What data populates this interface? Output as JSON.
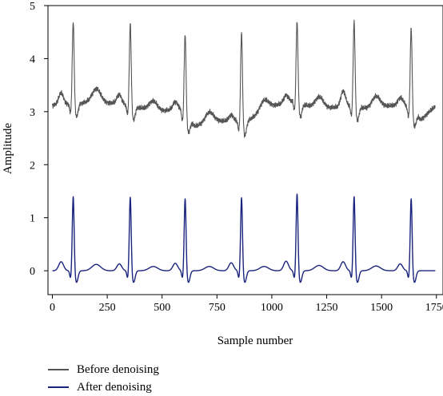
{
  "chart_data": {
    "type": "line",
    "title": "",
    "xlabel": "Sample number",
    "ylabel": "Amplitude",
    "xlim": [
      -20,
      1780
    ],
    "ylim": [
      -0.45,
      5
    ],
    "xticks": [
      0,
      250,
      500,
      750,
      1000,
      1250,
      1500,
      1750
    ],
    "xtick_labels": [
      "0",
      "250",
      "500",
      "750",
      "1000",
      "1250",
      "1500",
      "1750"
    ],
    "yticks": [
      0,
      1,
      2,
      3,
      4,
      5
    ],
    "ytick_labels": [
      "0",
      "1",
      "2",
      "3",
      "4",
      "5"
    ],
    "x_range": [
      0,
      1745
    ],
    "grid": false,
    "legend_position": "bottom-left, below plot",
    "beat_positions": [
      95,
      355,
      605,
      862,
      1115,
      1375,
      1635
    ],
    "series": [
      {
        "name": "Before denoising",
        "color": "#555555",
        "baseline": 3.1,
        "r_peaks": [
          4.72,
          4.68,
          4.48,
          4.52,
          4.72,
          4.72,
          4.6
        ],
        "baseline_knots": [
          [
            0,
            3.12
          ],
          [
            200,
            3.18
          ],
          [
            300,
            3.15
          ],
          [
            480,
            3.0
          ],
          [
            580,
            3.05
          ],
          [
            650,
            2.72
          ],
          [
            750,
            2.82
          ],
          [
            820,
            2.82
          ],
          [
            880,
            2.8
          ],
          [
            1000,
            3.1
          ],
          [
            1100,
            3.2
          ],
          [
            1200,
            3.05
          ],
          [
            1350,
            3.1
          ],
          [
            1450,
            3.05
          ],
          [
            1600,
            3.15
          ],
          [
            1680,
            2.85
          ],
          [
            1745,
            3.1
          ]
        ],
        "p_waves": [
          [
            40,
            0.22
          ],
          [
            305,
            0.18
          ],
          [
            560,
            0.15
          ],
          [
            815,
            0.12
          ],
          [
            1065,
            0.15
          ],
          [
            1325,
            0.3
          ],
          [
            1585,
            0.12
          ]
        ],
        "t_waves": [
          [
            200,
            0.25
          ],
          [
            460,
            0.18
          ],
          [
            715,
            0.2
          ],
          [
            965,
            0.2
          ],
          [
            1215,
            0.22
          ],
          [
            1475,
            0.22
          ]
        ]
      },
      {
        "name": "After denoising",
        "color": "#1a237e",
        "baseline": 0.0,
        "r_peaks": [
          1.42,
          1.41,
          1.38,
          1.4,
          1.47,
          1.42,
          1.38
        ],
        "p_waves": [
          [
            40,
            0.17
          ],
          [
            305,
            0.13
          ],
          [
            560,
            0.14
          ],
          [
            815,
            0.15
          ],
          [
            1065,
            0.18
          ],
          [
            1325,
            0.17
          ],
          [
            1585,
            0.13
          ]
        ],
        "t_waves": [
          [
            200,
            0.12
          ],
          [
            460,
            0.08
          ],
          [
            715,
            0.08
          ],
          [
            965,
            0.08
          ],
          [
            1215,
            0.1
          ],
          [
            1475,
            0.09
          ]
        ]
      }
    ]
  }
}
